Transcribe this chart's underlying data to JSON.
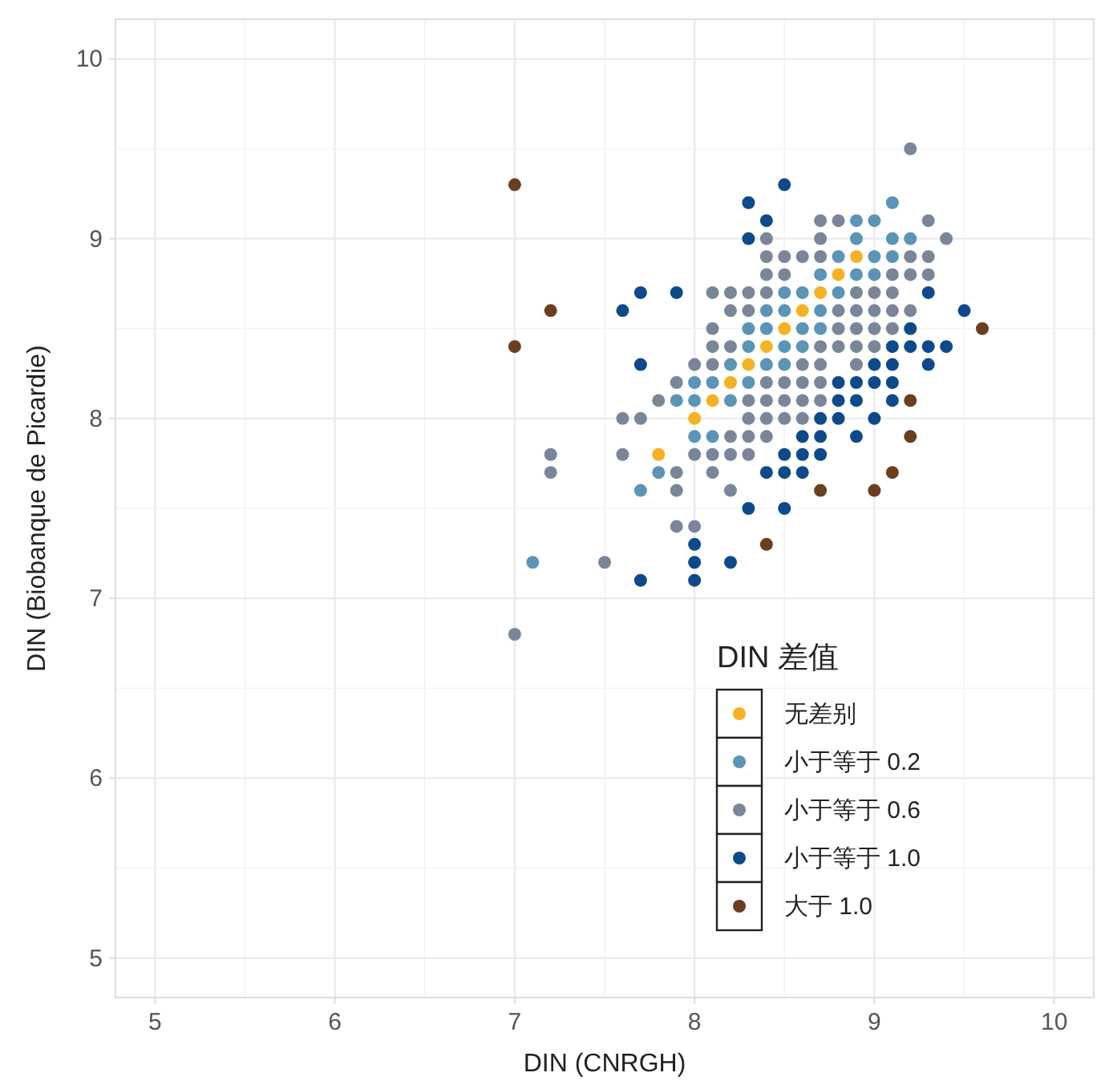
{
  "chart_data": {
    "type": "scatter",
    "xlabel": "DIN (CNRGH)",
    "ylabel": "DIN (Biobanque de Picardie)",
    "legend_title": "DIN 差值",
    "xlim": [
      4.78,
      10.22
    ],
    "ylim": [
      4.78,
      10.22
    ],
    "xticks": [
      5,
      6,
      7,
      8,
      9,
      10
    ],
    "yticks": [
      5,
      6,
      7,
      8,
      9,
      10
    ],
    "grid": true,
    "legend": "bottom right",
    "marker": "circle",
    "series": [
      {
        "name": "无差别",
        "color": "#f6b224",
        "x": [
          8.9,
          8.8,
          8.7,
          8.6,
          8.5,
          8.4,
          8.3,
          8.2,
          8.1,
          8.0,
          7.8
        ],
        "values": [
          8.9,
          8.8,
          8.7,
          8.6,
          8.5,
          8.4,
          8.3,
          8.2,
          8.1,
          8.0,
          7.8
        ]
      },
      {
        "name": "小于等于 0.2",
        "color": "#5b94b6",
        "x": [
          9.1,
          8.9,
          9.0,
          8.9,
          9.1,
          9.2,
          8.8,
          9.0,
          9.1,
          8.7,
          8.9,
          9.0,
          8.5,
          8.6,
          8.8,
          8.4,
          8.5,
          8.7,
          8.3,
          8.4,
          8.6,
          8.7,
          8.3,
          8.5,
          8.6,
          8.2,
          8.4,
          8.5,
          8.0,
          8.1,
          8.3,
          7.9,
          8.0,
          8.2,
          8.0,
          8.1,
          7.8,
          7.7,
          7.1
        ],
        "values": [
          9.2,
          9.1,
          9.1,
          9.0,
          9.0,
          9.0,
          8.9,
          8.9,
          8.9,
          8.8,
          8.8,
          8.8,
          8.7,
          8.7,
          8.7,
          8.6,
          8.6,
          8.6,
          8.5,
          8.5,
          8.5,
          8.5,
          8.4,
          8.4,
          8.4,
          8.3,
          8.3,
          8.3,
          8.2,
          8.2,
          8.2,
          8.1,
          8.1,
          8.1,
          7.9,
          7.9,
          7.7,
          7.6,
          7.2
        ]
      },
      {
        "name": "小于等于 0.6",
        "color": "#7a8698",
        "x": [
          9.2,
          8.7,
          8.8,
          9.3,
          8.4,
          8.7,
          9.4,
          8.4,
          8.5,
          8.6,
          8.7,
          9.2,
          9.3,
          8.4,
          8.5,
          9.1,
          9.2,
          9.3,
          8.1,
          8.2,
          8.3,
          8.4,
          8.9,
          9.0,
          9.1,
          8.2,
          8.3,
          8.8,
          8.9,
          9.0,
          9.1,
          9.2,
          8.1,
          8.8,
          8.9,
          9.0,
          9.1,
          8.1,
          8.2,
          8.7,
          8.8,
          8.9,
          9.0,
          8.0,
          8.1,
          8.6,
          8.7,
          8.9,
          7.9,
          8.4,
          8.5,
          8.6,
          8.7,
          7.8,
          8.3,
          8.4,
          8.5,
          8.6,
          8.7,
          7.6,
          7.7,
          8.3,
          8.4,
          8.5,
          8.6,
          8.2,
          8.3,
          8.4,
          7.2,
          7.6,
          8.0,
          8.1,
          8.2,
          8.3,
          7.2,
          7.9,
          8.1,
          7.9,
          8.2,
          7.9,
          8.0,
          7.5,
          7.0
        ],
        "values": [
          9.5,
          9.1,
          9.1,
          9.1,
          9.0,
          9.0,
          9.0,
          8.9,
          8.9,
          8.9,
          8.9,
          8.9,
          8.9,
          8.8,
          8.8,
          8.8,
          8.8,
          8.8,
          8.7,
          8.7,
          8.7,
          8.7,
          8.7,
          8.7,
          8.7,
          8.6,
          8.6,
          8.6,
          8.6,
          8.6,
          8.6,
          8.6,
          8.5,
          8.5,
          8.5,
          8.5,
          8.5,
          8.4,
          8.4,
          8.4,
          8.4,
          8.4,
          8.4,
          8.3,
          8.3,
          8.3,
          8.3,
          8.3,
          8.2,
          8.2,
          8.2,
          8.2,
          8.2,
          8.1,
          8.1,
          8.1,
          8.1,
          8.1,
          8.1,
          8.0,
          8.0,
          8.0,
          8.0,
          8.0,
          8.0,
          7.9,
          7.9,
          7.9,
          7.8,
          7.8,
          7.8,
          7.8,
          7.8,
          7.8,
          7.7,
          7.7,
          7.7,
          7.6,
          7.6,
          7.4,
          7.4,
          7.2,
          6.8
        ]
      },
      {
        "name": "小于等于 1.0",
        "color": "#0e4a8a",
        "x": [
          8.5,
          8.3,
          8.4,
          8.3,
          7.7,
          7.9,
          9.3,
          7.6,
          9.5,
          9.2,
          9.1,
          9.2,
          9.3,
          9.4,
          7.7,
          9.0,
          9.1,
          9.3,
          8.8,
          8.9,
          9.0,
          9.1,
          8.8,
          8.9,
          9.1,
          8.7,
          8.8,
          9.0,
          8.6,
          8.7,
          8.9,
          8.5,
          8.6,
          8.7,
          8.4,
          8.5,
          8.6,
          8.3,
          8.5,
          8.0,
          8.0,
          8.2,
          7.7,
          8.0
        ],
        "values": [
          9.3,
          9.2,
          9.1,
          9.0,
          8.7,
          8.7,
          8.7,
          8.6,
          8.6,
          8.5,
          8.4,
          8.4,
          8.4,
          8.4,
          8.3,
          8.3,
          8.3,
          8.3,
          8.2,
          8.2,
          8.2,
          8.2,
          8.1,
          8.1,
          8.1,
          8.0,
          8.0,
          8.0,
          7.9,
          7.9,
          7.9,
          7.8,
          7.8,
          7.8,
          7.7,
          7.7,
          7.7,
          7.5,
          7.5,
          7.3,
          7.2,
          7.2,
          7.1,
          7.1
        ]
      },
      {
        "name": "大于 1.0",
        "color": "#6b3e20",
        "x": [
          7.0,
          7.2,
          7.0,
          9.6,
          9.2,
          9.2,
          9.1,
          8.7,
          9.0,
          8.4
        ],
        "values": [
          9.3,
          8.6,
          8.4,
          8.5,
          8.1,
          7.9,
          7.7,
          7.6,
          7.6,
          7.3
        ]
      }
    ]
  }
}
